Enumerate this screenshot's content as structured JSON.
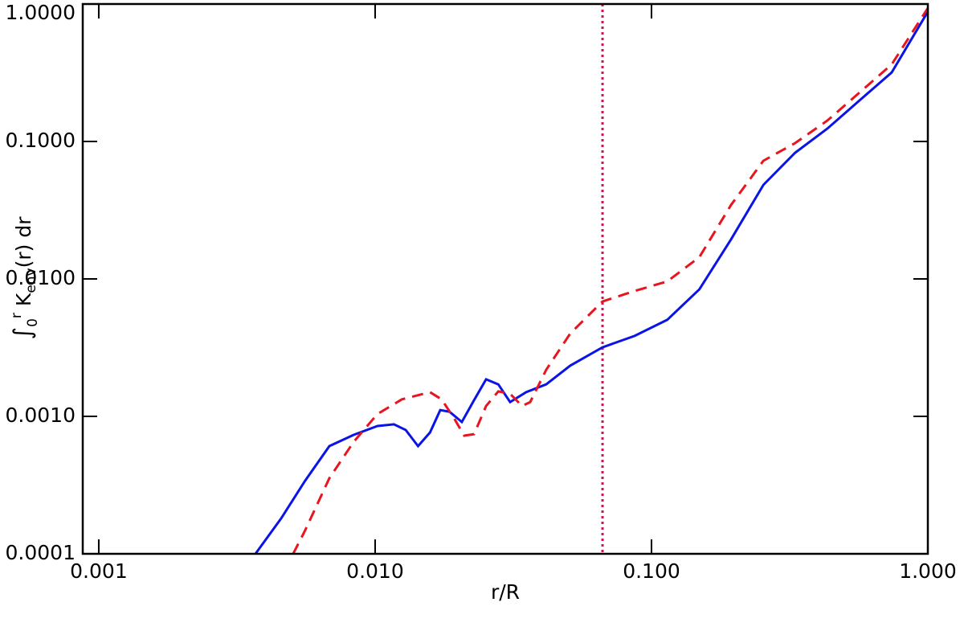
{
  "chart_data": {
    "type": "line",
    "xlabel": "r/R",
    "ylabel": {
      "integral": "∫",
      "lower": "0",
      "upper": "r",
      "k": "K",
      "sub": "env",
      "rest": "(r) dr"
    },
    "xlog": true,
    "ylog": true,
    "xlim": [
      0.000875,
      1.0
    ],
    "ylim": [
      0.0001,
      1.0
    ],
    "xticks": [
      0.001,
      {
        "value": 0.01,
        "label": "0.010"
      },
      {
        "value": 0.1,
        "label": "0.100"
      },
      {
        "value": 1,
        "label": "1.000"
      }
    ],
    "yticks": [
      0.0001,
      {
        "value": 0.001,
        "label": "0.0010"
      },
      {
        "value": 0.01,
        "label": "0.0100"
      },
      {
        "value": 0.1,
        "label": "0.1000"
      },
      {
        "value": 1,
        "label": "1.0000"
      }
    ],
    "series": [
      {
        "color": "#0a14e6",
        "dash": "solid",
        "x": [
          0.00369,
          0.00457,
          0.00558,
          0.00683,
          0.00835,
          0.0102,
          0.0117,
          0.0129,
          0.0143,
          0.0158,
          0.0172,
          0.0186,
          0.0206,
          0.0228,
          0.0252,
          0.0279,
          0.0308,
          0.0352,
          0.0416,
          0.0508,
          0.0665,
          0.0869,
          0.114,
          0.149,
          0.194,
          0.254,
          0.331,
          0.433,
          0.566,
          0.74,
          1.0
        ],
        "values": [
          0.0001,
          0.000181,
          0.00034,
          0.000608,
          0.000733,
          0.000851,
          0.000875,
          0.000796,
          0.000608,
          0.000764,
          0.00111,
          0.00108,
          0.00091,
          0.00131,
          0.00186,
          0.00171,
          0.00127,
          0.0015,
          0.00171,
          0.00234,
          0.00318,
          0.00385,
          0.00504,
          0.0084,
          0.0194,
          0.0483,
          0.0828,
          0.124,
          0.199,
          0.318,
          0.88
        ]
      },
      {
        "color": "#e8141e",
        "dash": "dashed",
        "x": [
          0.00505,
          0.00558,
          0.00683,
          0.00835,
          0.0102,
          0.0125,
          0.0158,
          0.0174,
          0.0193,
          0.021,
          0.0228,
          0.0252,
          0.0279,
          0.0308,
          0.034,
          0.0364,
          0.0416,
          0.0508,
          0.0665,
          0.0869,
          0.114,
          0.149,
          0.194,
          0.254,
          0.331,
          0.433,
          0.566,
          0.74,
          1.0
        ],
        "values": [
          0.0001,
          0.000148,
          0.000355,
          0.00065,
          0.00104,
          0.00133,
          0.0015,
          0.00133,
          0.00097,
          0.000724,
          0.000743,
          0.00119,
          0.00152,
          0.00146,
          0.00119,
          0.00127,
          0.00218,
          0.004,
          0.00685,
          0.00817,
          0.00959,
          0.0144,
          0.0345,
          0.0724,
          0.0973,
          0.142,
          0.227,
          0.364,
          0.935
        ]
      }
    ],
    "vline": {
      "x": 0.0665,
      "color": "#d4105a"
    }
  }
}
